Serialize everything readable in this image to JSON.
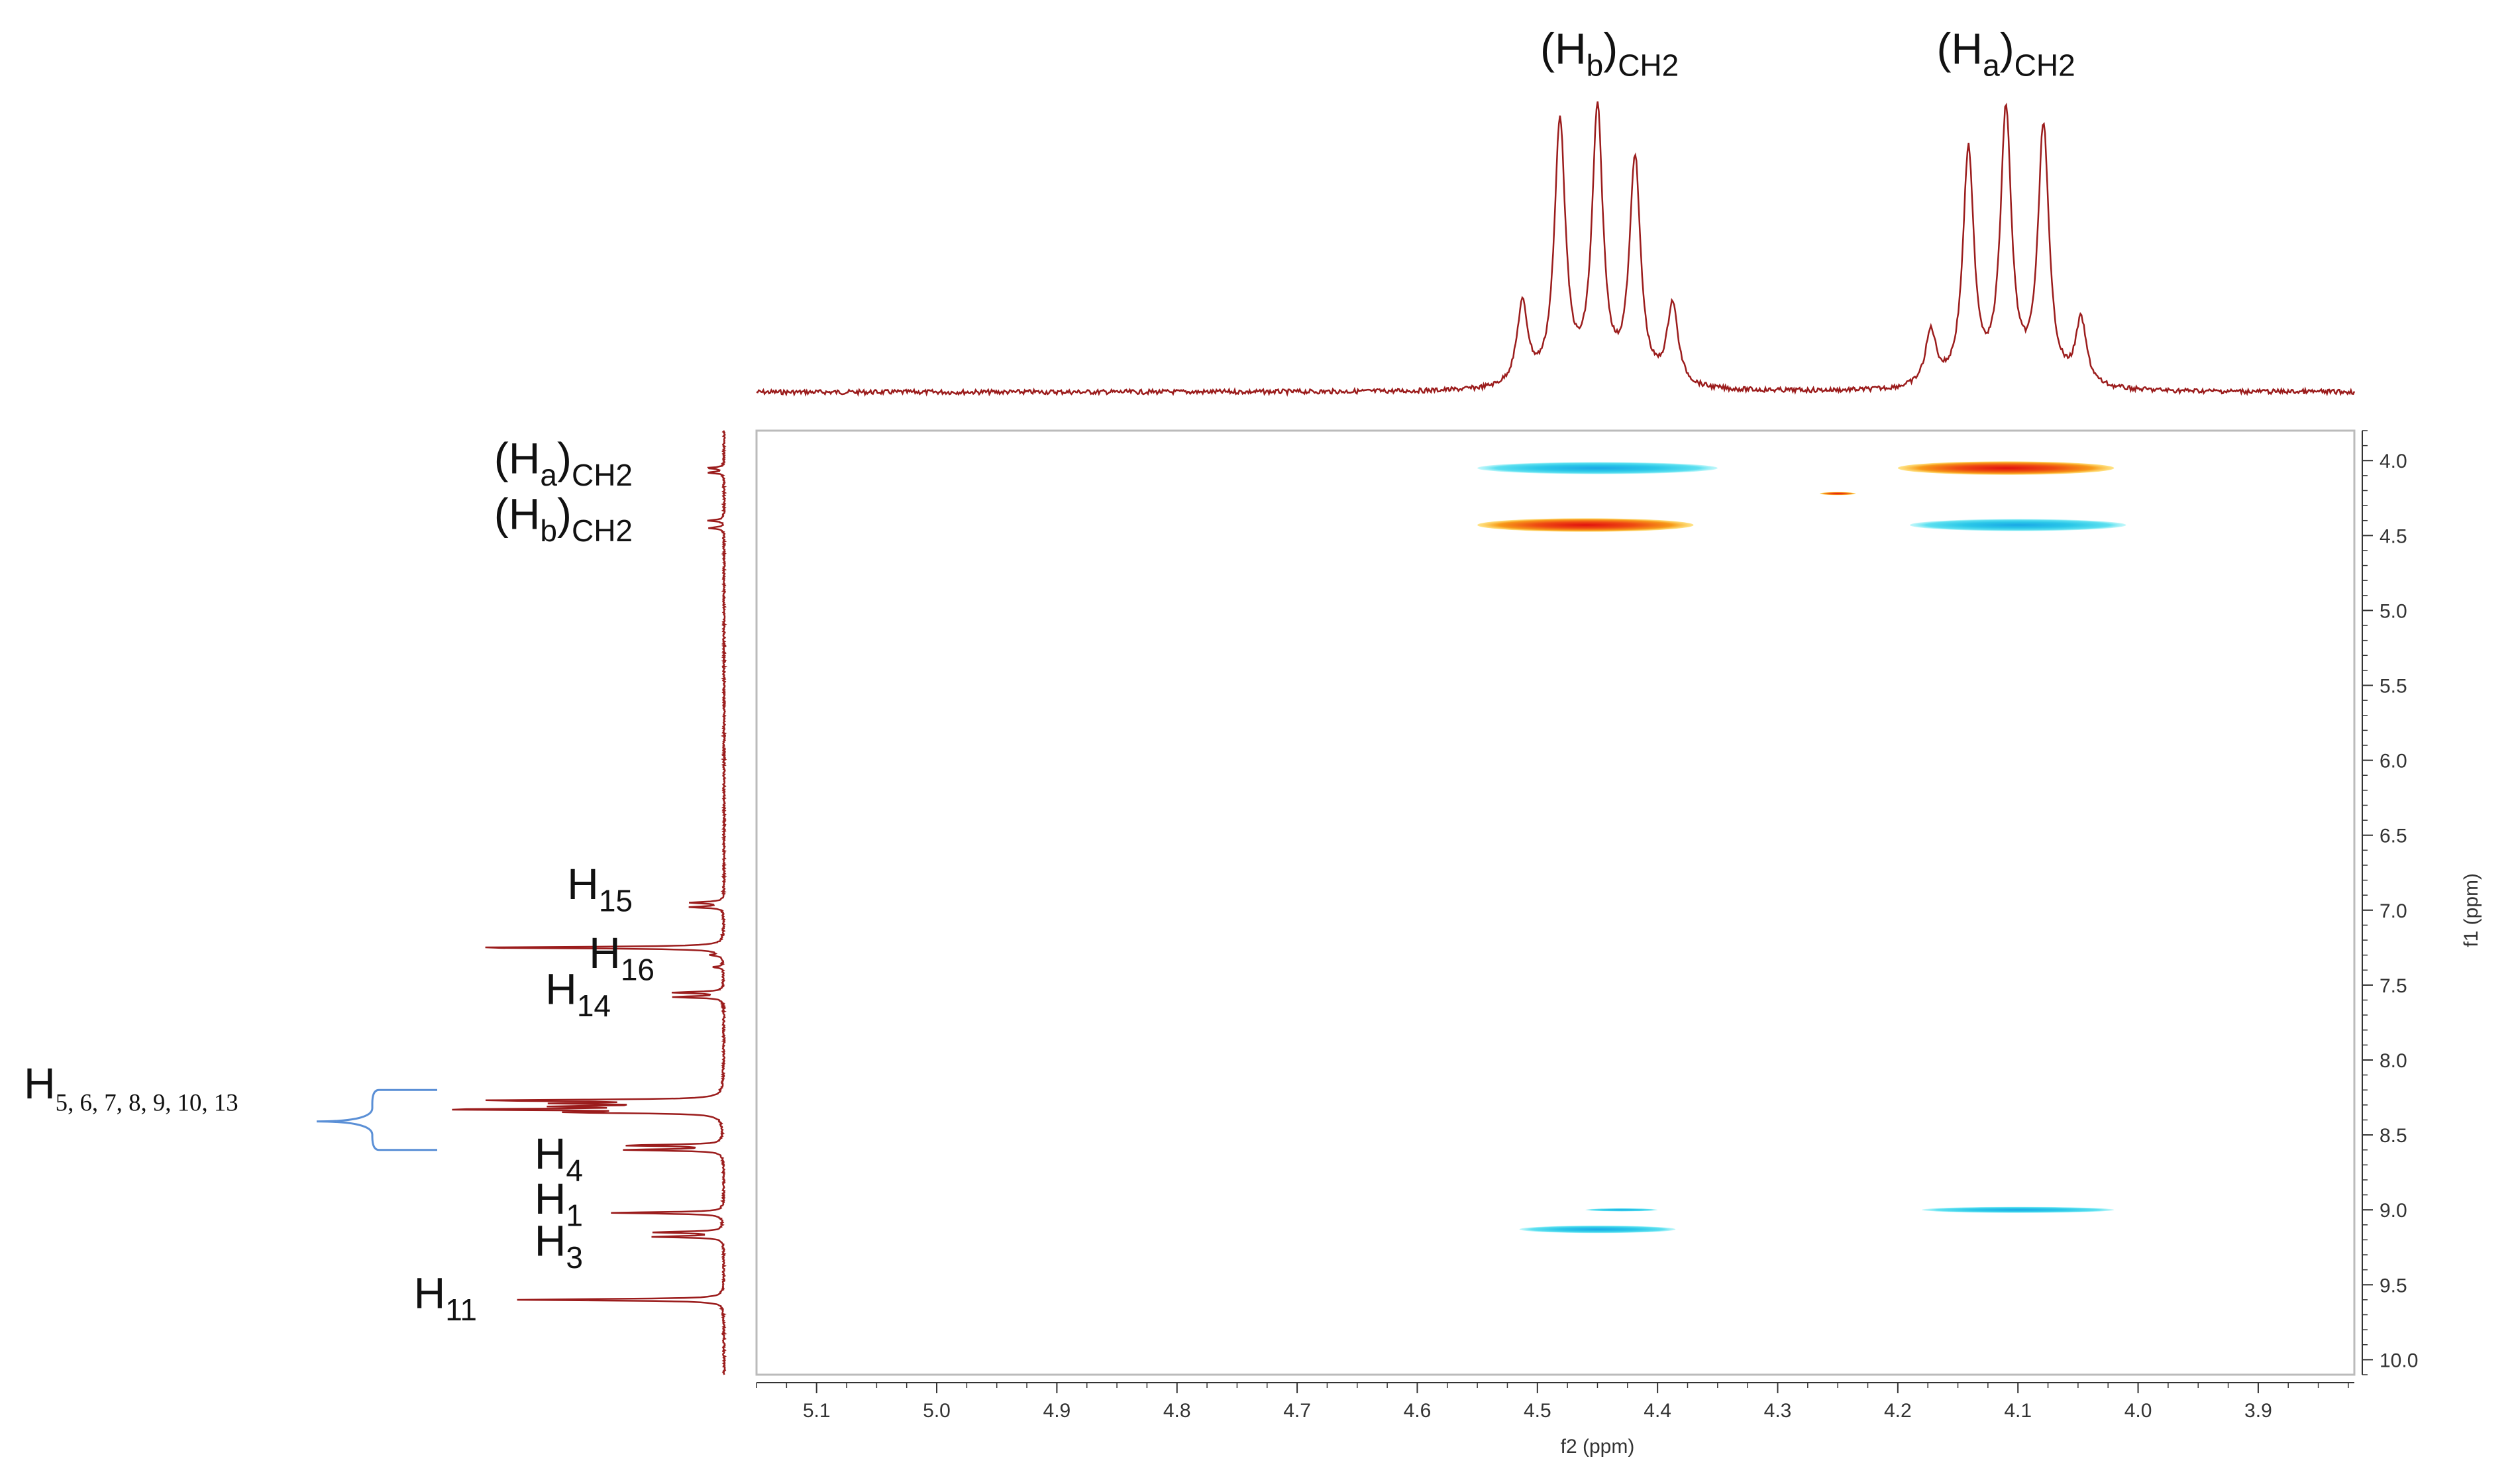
{
  "chart_data": {
    "type": "heatmap",
    "subtype": "2D NOESY NMR spectrum",
    "xlabel": "f2 (ppm)",
    "ylabel": "f1 (ppm)",
    "x_range": [
      5.15,
      3.82
    ],
    "y_range": [
      3.8,
      10.1
    ],
    "x_axis_reversed": true,
    "y_axis_reversed": true,
    "x_ticks": [
      "5.1",
      "5.0",
      "4.9",
      "4.8",
      "4.7",
      "4.6",
      "4.5",
      "4.4",
      "4.3",
      "4.2",
      "4.1",
      "4.0",
      "3.9"
    ],
    "y_ticks": [
      "4.0",
      "4.5",
      "5.0",
      "5.5",
      "6.0",
      "6.5",
      "7.0",
      "7.5",
      "8.0",
      "8.5",
      "9.0",
      "9.5",
      "10.0"
    ],
    "grid": false,
    "colors": {
      "positive": "#e8401a",
      "negative": "#2bc7e8",
      "trace": "#9b1c1c",
      "bracket": "#5a8fd6"
    },
    "cross_peaks": [
      {
        "f2": 4.45,
        "f1": 4.05,
        "sign": "negative",
        "width": 0.2,
        "height": 0.08
      },
      {
        "f2": 4.46,
        "f1": 4.43,
        "sign": "positive",
        "width": 0.18,
        "height": 0.09
      },
      {
        "f2": 4.11,
        "f1": 4.05,
        "sign": "positive",
        "width": 0.18,
        "height": 0.09
      },
      {
        "f2": 4.1,
        "f1": 4.43,
        "sign": "negative",
        "width": 0.18,
        "height": 0.08
      },
      {
        "f2": 4.25,
        "f1": 4.22,
        "sign": "positive",
        "width": 0.03,
        "height": 0.02
      },
      {
        "f2": 4.43,
        "f1": 9.0,
        "sign": "negative",
        "width": 0.06,
        "height": 0.02
      },
      {
        "f2": 4.45,
        "f1": 9.13,
        "sign": "negative",
        "width": 0.13,
        "height": 0.05
      },
      {
        "f2": 4.1,
        "f1": 9.0,
        "sign": "negative",
        "width": 0.16,
        "height": 0.04
      }
    ],
    "top_projection": {
      "multiplets": [
        {
          "center": 4.45,
          "offsets": [
            -0.0625,
            -0.03125,
            0.0,
            0.03125,
            0.0625
          ],
          "heights": [
            0.3,
            0.83,
            1.0,
            0.97,
            0.3
          ]
        },
        {
          "center": 4.11,
          "offsets": [
            -0.0625,
            -0.03125,
            0.0,
            0.03125,
            0.0625
          ],
          "heights": [
            0.24,
            0.95,
            1.0,
            0.86,
            0.2
          ]
        }
      ],
      "labels": [
        {
          "main": "(H",
          "sub1": "b",
          "mid": ")",
          "sub2": "CH2",
          "ppm": 4.44
        },
        {
          "main": "(H",
          "sub1": "a",
          "mid": ")",
          "sub2": "CH2",
          "ppm": 4.11
        }
      ]
    },
    "left_projection": {
      "peaks": [
        {
          "ppm": 4.05,
          "intensity": 0.06
        },
        {
          "ppm": 4.08,
          "intensity": 0.06
        },
        {
          "ppm": 4.4,
          "intensity": 0.06
        },
        {
          "ppm": 4.45,
          "intensity": 0.06
        },
        {
          "ppm": 6.95,
          "intensity": 0.13
        },
        {
          "ppm": 6.98,
          "intensity": 0.13
        },
        {
          "ppm": 7.25,
          "intensity": 0.98
        },
        {
          "ppm": 7.3,
          "intensity": 0.04
        },
        {
          "ppm": 7.38,
          "intensity": 0.04
        },
        {
          "ppm": 7.55,
          "intensity": 0.19
        },
        {
          "ppm": 7.58,
          "intensity": 0.19
        },
        {
          "ppm": 8.27,
          "intensity": 0.87
        },
        {
          "ppm": 8.29,
          "intensity": 0.52
        },
        {
          "ppm": 8.31,
          "intensity": 0.52
        },
        {
          "ppm": 8.33,
          "intensity": 1.0
        },
        {
          "ppm": 8.35,
          "intensity": 0.52
        },
        {
          "ppm": 8.57,
          "intensity": 0.37
        },
        {
          "ppm": 8.6,
          "intensity": 0.37
        },
        {
          "ppm": 9.02,
          "intensity": 0.43
        },
        {
          "ppm": 9.15,
          "intensity": 0.26
        },
        {
          "ppm": 9.18,
          "intensity": 0.26
        },
        {
          "ppm": 9.6,
          "intensity": 0.78
        }
      ],
      "labels": [
        {
          "main": "(H",
          "sub1": "a",
          "mid": ")",
          "sub2": "CH2",
          "ppm": 3.98
        },
        {
          "main": "(H",
          "sub1": "b",
          "mid": ")",
          "sub2": "CH2",
          "ppm": 4.35
        },
        {
          "main": "H",
          "sub1": "15",
          "ppm": 6.82
        },
        {
          "main": "H",
          "sub1": "16",
          "ppm": 7.28
        },
        {
          "main": "H",
          "sub1": "14",
          "ppm": 7.52
        },
        {
          "main": "H",
          "sub1": "5, 6, 7, 8, 9, 10, 13",
          "ppm": 8.15
        },
        {
          "main": "H",
          "sub1": "4",
          "ppm": 8.62
        },
        {
          "main": "H",
          "sub1": "1",
          "ppm": 8.92
        },
        {
          "main": "H",
          "sub1": "3",
          "ppm": 9.2
        },
        {
          "main": "H",
          "sub1": "11",
          "ppm": 9.55
        }
      ]
    }
  }
}
